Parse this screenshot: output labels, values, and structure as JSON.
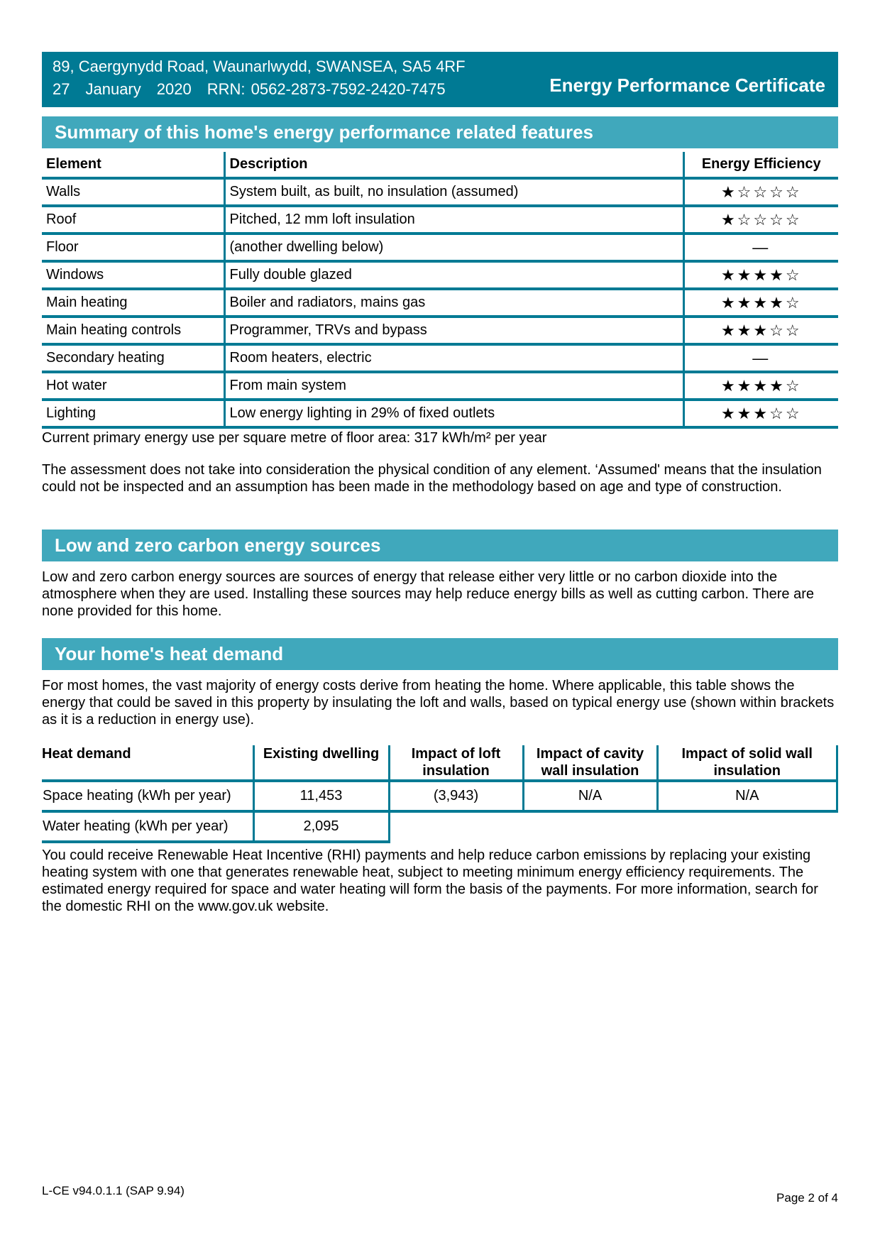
{
  "header": {
    "address": "89, Caergynydd Road, Waunarlwydd, SWANSEA, SA5 4RF",
    "day": "27",
    "month": "January",
    "year": "2020",
    "rrn": "RRN: 0562-2873-7592-2420-7475",
    "title": "Energy Performance Certificate",
    "color": "#007a94"
  },
  "summary": {
    "heading": "Summary of this home's energy performance related features",
    "columns": [
      "Element",
      "Description",
      "Energy Efficiency"
    ],
    "rows": [
      {
        "element": "Walls",
        "description": "System built, as built, no insulation (assumed)",
        "stars": "★☆☆☆☆",
        "rating": 1
      },
      {
        "element": "Roof",
        "description": "Pitched, 12 mm loft insulation",
        "stars": "★☆☆☆☆",
        "rating": 1
      },
      {
        "element": "Floor",
        "description": "(another dwelling below)",
        "stars": "—",
        "rating": null
      },
      {
        "element": "Windows",
        "description": "Fully double glazed",
        "stars": "★★★★☆",
        "rating": 4
      },
      {
        "element": "Main heating",
        "description": "Boiler and radiators, mains gas",
        "stars": "★★★★☆",
        "rating": 4
      },
      {
        "element": "Main heating controls",
        "description": "Programmer, TRVs and bypass",
        "stars": "★★★☆☆",
        "rating": 3
      },
      {
        "element": "Secondary heating",
        "description": "Room heaters, electric",
        "stars": "—",
        "rating": null
      },
      {
        "element": "Hot water",
        "description": "From main system",
        "stars": "★★★★☆",
        "rating": 4
      },
      {
        "element": "Lighting",
        "description": "Low energy lighting in 29% of fixed outlets",
        "stars": "★★★☆☆",
        "rating": 3
      }
    ],
    "primary_energy": "Current primary energy use per square metre of floor area: 317 kWh/m² per year",
    "assessment_note": "The assessment does not take into consideration the physical condition of any element. ‘Assumed' means that the insulation could not be inspected and an assumption has been made in the methodology based on age and type of construction."
  },
  "lzc": {
    "heading": "Low and zero carbon energy sources",
    "text": "Low and zero carbon energy sources are sources of energy that release either very little or no carbon dioxide into the atmosphere when they are used. Installing these sources may help reduce energy bills as well as cutting carbon. There are none provided for this home."
  },
  "heat": {
    "heading": "Your home's heat demand",
    "intro": "For most homes, the vast majority of energy costs derive from heating the home. Where applicable, this table shows the energy that could be saved in this property by insulating the loft and walls, based on typical energy use (shown within brackets as it is a reduction in energy use).",
    "columns": [
      "Heat demand",
      "Existing dwelling",
      "Impact of loft insulation",
      "Impact of cavity wall insulation",
      "Impact of solid wall insulation"
    ],
    "rows": [
      [
        "Space heating (kWh per year)",
        "11,453",
        "(3,943)",
        "N/A",
        "N/A"
      ],
      [
        "Water heating (kWh per year)",
        "2,095"
      ]
    ],
    "rhi": "You could receive Renewable Heat Incentive (RHI) payments and help reduce carbon emissions by replacing your existing heating system with one that generates renewable heat, subject to meeting minimum energy efficiency requirements. The estimated energy required for space and water heating will form the basis of the payments. For more information, search for the domestic RHI on the www.gov.uk website."
  },
  "footer": {
    "version": "L-CE v94.0.1.1 (SAP 9.94)",
    "page": "Page 2 of 4"
  }
}
